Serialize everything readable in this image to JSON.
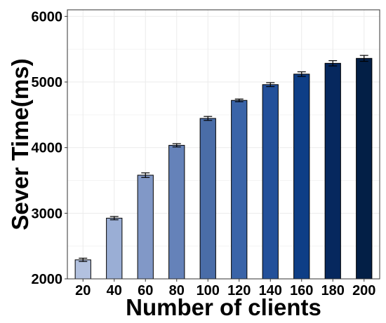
{
  "chart_data": {
    "type": "bar",
    "title": "",
    "xlabel": "Number of clients",
    "ylabel": "Sever Time(ms)",
    "categories": [
      "20",
      "40",
      "60",
      "80",
      "100",
      "120",
      "140",
      "160",
      "180",
      "200"
    ],
    "values": [
      2290,
      2925,
      3580,
      4035,
      4445,
      4720,
      4960,
      5120,
      5285,
      5360
    ],
    "errors": [
      25,
      25,
      35,
      25,
      30,
      20,
      30,
      35,
      40,
      45
    ],
    "ylim": [
      2000,
      6100
    ],
    "yticks": [
      2000,
      3000,
      4000,
      5000,
      6000
    ],
    "grid": true,
    "legend": "none",
    "bar_colors": [
      "#b2c1df",
      "#9aaed5",
      "#8198c7",
      "#6582b9",
      "#4a6da8",
      "#3a64a8",
      "#23509a",
      "#0e3e86",
      "#06285e",
      "#031f46"
    ]
  }
}
